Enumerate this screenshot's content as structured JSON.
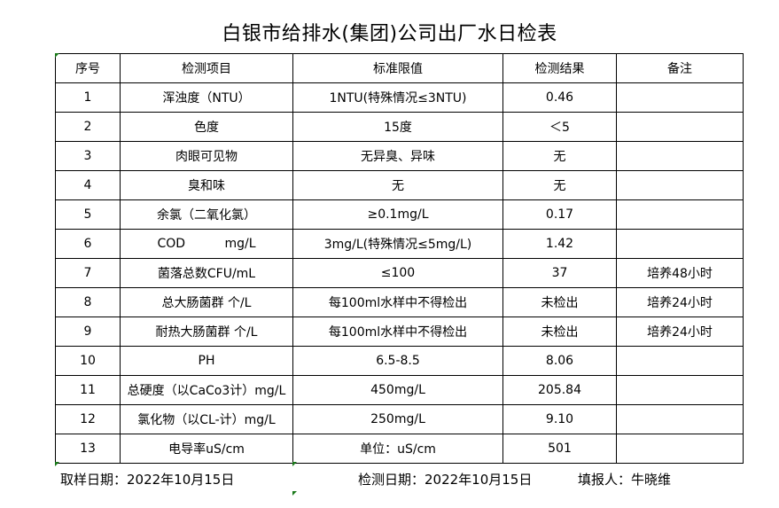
{
  "title": "白银市给排水(集团)公司出厂水日检表",
  "table": {
    "headers": [
      "序号",
      "检测项目",
      "标准限值",
      "检测结果",
      "备注"
    ],
    "rows": [
      [
        "1",
        "浑浊度（NTU）",
        "1NTU(特殊情况≤3NTU)",
        "0.46",
        ""
      ],
      [
        "2",
        "色度",
        "15度",
        "＜5",
        ""
      ],
      [
        "3",
        "肉眼可见物",
        "无异臭、异味",
        "无",
        ""
      ],
      [
        "4",
        "臭和味",
        "无",
        "无",
        ""
      ],
      [
        "5",
        "余氯（二氧化氯）",
        "≥0.1mg/L",
        "0.17",
        ""
      ],
      [
        "6",
        "COD          mg/L",
        "3mg/L(特殊情况≤5mg/L)",
        "1.42",
        ""
      ],
      [
        "7",
        "菌落总数CFU/mL",
        "≤100",
        "37",
        "培养48小时"
      ],
      [
        "8",
        "总大肠菌群 个/L",
        "每100ml水样中不得检出",
        "未检出",
        "培养24小时"
      ],
      [
        "9",
        "耐热大肠菌群 个/L",
        "每100ml水样中不得检出",
        "未检出",
        "培养24小时"
      ],
      [
        "10",
        "PH",
        "6.5-8.5",
        "8.06",
        ""
      ],
      [
        "11",
        "总硬度（以CaCo3计）mg/L",
        "450mg/L",
        "205.84",
        ""
      ],
      [
        "12",
        "氯化物（以CL-计）mg/L",
        "250mg/L",
        "9.10",
        ""
      ],
      [
        "13",
        "电导率uS/cm",
        "单位：uS/cm",
        "501",
        ""
      ]
    ]
  },
  "footer": {
    "sampling_date": "取样日期：2022年10月15日",
    "test_date": "检测日期：2022年10月15日",
    "reporter": "填报人：牛晓维"
  },
  "colors": {
    "cell_marker": "#1a7a1a"
  }
}
